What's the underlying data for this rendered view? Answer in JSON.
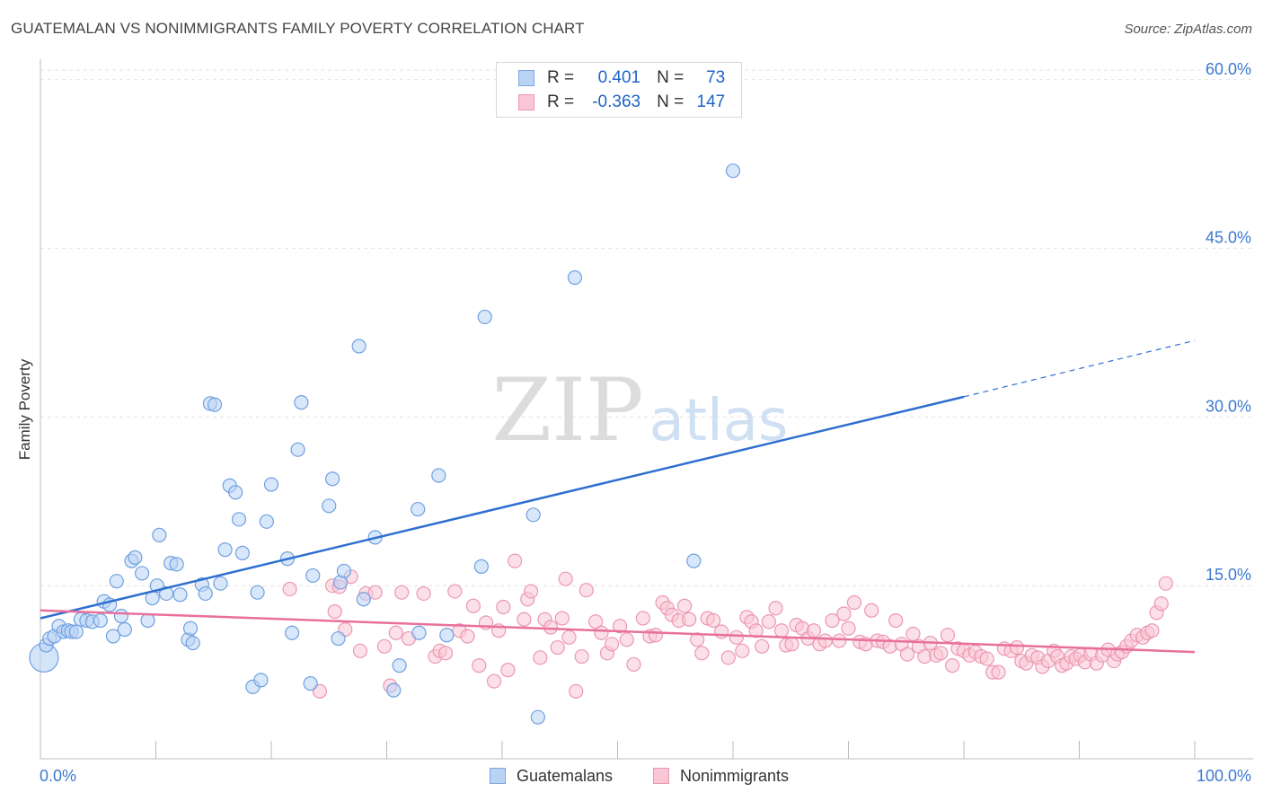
{
  "header": {
    "title": "GUATEMALAN VS NONIMMIGRANTS FAMILY POVERTY CORRELATION CHART",
    "source": "Source: ZipAtlas.com"
  },
  "watermark": {
    "zip": "ZIP",
    "atlas": "atlas"
  },
  "legend": {
    "series": [
      {
        "r_label": "R =",
        "r_value": "0.401",
        "n_label": "N =",
        "n_value": "73",
        "fill": "#b9d3f5",
        "stroke": "#7ba7e0"
      },
      {
        "r_label": "R =",
        "r_value": "-0.363",
        "n_label": "N =",
        "n_value": "147",
        "fill": "#f9c6d6",
        "stroke": "#eb97b2"
      }
    ]
  },
  "bottom_legend": {
    "guatemalans": "Guatemalans",
    "nonimmigrants": "Nonimmigrants"
  },
  "chart_data": {
    "type": "scatter",
    "title": "GUATEMALAN VS NONIMMIGRANTS FAMILY POVERTY CORRELATION CHART",
    "xlabel": "",
    "ylabel": "Family Poverty",
    "xlim": [
      0,
      100
    ],
    "ylim": [
      0,
      61.5
    ],
    "x_tick_labels": [
      {
        "value": 0,
        "label": "0.0%"
      },
      {
        "value": 100,
        "label": "100.0%"
      }
    ],
    "y_tick_labels": [
      {
        "value": 15,
        "label": "15.0%"
      },
      {
        "value": 30,
        "label": "30.0%"
      },
      {
        "value": 45,
        "label": "45.0%"
      },
      {
        "value": 60,
        "label": "60.0%"
      }
    ],
    "x_minor_ticks": [
      10,
      20,
      30,
      40,
      50,
      60,
      70,
      80,
      90,
      100
    ],
    "grid": true,
    "series": [
      {
        "name": "Guatemalans",
        "color": "#6fa0e0",
        "fill": "#b9d3f5",
        "trend_color": "#2f6fd0",
        "trend": {
          "x1": 0,
          "y1": 12.1,
          "x2": 80,
          "y2": 31.8,
          "dash_to_x": 100,
          "dash_to_y": 36.8
        },
        "points": [
          [
            0.5,
            9.7
          ],
          [
            0.8,
            10.3
          ],
          [
            1.2,
            10.5
          ],
          [
            1.6,
            11.4
          ],
          [
            2.0,
            10.9
          ],
          [
            2.4,
            11.0
          ],
          [
            2.7,
            10.9
          ],
          [
            3.1,
            10.9
          ],
          [
            3.5,
            12.0
          ],
          [
            4.0,
            11.9
          ],
          [
            4.5,
            11.8
          ],
          [
            5.2,
            11.9
          ],
          [
            5.5,
            13.6
          ],
          [
            6.0,
            13.3
          ],
          [
            6.3,
            10.5
          ],
          [
            6.6,
            15.4
          ],
          [
            7.0,
            12.3
          ],
          [
            7.3,
            11.1
          ],
          [
            7.9,
            17.2
          ],
          [
            8.2,
            17.5
          ],
          [
            8.8,
            16.1
          ],
          [
            9.3,
            11.9
          ],
          [
            9.7,
            13.9
          ],
          [
            10.1,
            15.0
          ],
          [
            10.3,
            19.5
          ],
          [
            10.9,
            14.3
          ],
          [
            11.3,
            17.0
          ],
          [
            11.8,
            16.9
          ],
          [
            12.1,
            14.2
          ],
          [
            12.8,
            10.2
          ],
          [
            13.0,
            11.2
          ],
          [
            13.2,
            9.9
          ],
          [
            14.0,
            15.1
          ],
          [
            14.3,
            14.3
          ],
          [
            14.7,
            31.2
          ],
          [
            15.1,
            31.1
          ],
          [
            15.6,
            15.2
          ],
          [
            16.0,
            18.2
          ],
          [
            16.4,
            23.9
          ],
          [
            16.9,
            23.3
          ],
          [
            17.2,
            20.9
          ],
          [
            17.5,
            17.9
          ],
          [
            18.4,
            6.0
          ],
          [
            18.8,
            14.4
          ],
          [
            19.1,
            6.6
          ],
          [
            19.6,
            20.7
          ],
          [
            20.0,
            24.0
          ],
          [
            21.4,
            17.4
          ],
          [
            21.8,
            10.8
          ],
          [
            22.3,
            27.1
          ],
          [
            22.6,
            31.3
          ],
          [
            23.4,
            6.3
          ],
          [
            23.6,
            15.9
          ],
          [
            25.0,
            22.1
          ],
          [
            25.3,
            24.5
          ],
          [
            25.8,
            10.3
          ],
          [
            26.0,
            15.3
          ],
          [
            26.3,
            16.3
          ],
          [
            27.6,
            36.3
          ],
          [
            28.0,
            13.8
          ],
          [
            29.0,
            19.3
          ],
          [
            30.6,
            5.7
          ],
          [
            31.1,
            7.9
          ],
          [
            32.8,
            10.8
          ],
          [
            32.7,
            21.8
          ],
          [
            34.5,
            24.8
          ],
          [
            35.2,
            10.6
          ],
          [
            38.2,
            16.7
          ],
          [
            38.5,
            38.9
          ],
          [
            42.7,
            21.3
          ],
          [
            43.1,
            3.3
          ],
          [
            46.3,
            42.4
          ],
          [
            56.6,
            17.2
          ],
          [
            60.0,
            51.9
          ]
        ],
        "point_radius": 7.5,
        "big_point": {
          "x": 0.3,
          "y": 8.6,
          "r": 16
        }
      },
      {
        "name": "Nonimmigrants",
        "color": "#eb97b2",
        "fill": "#f9c6d6",
        "trend_color": "#e8709a",
        "trend": {
          "x1": 0,
          "y1": 12.8,
          "x2": 100,
          "y2": 9.1
        },
        "points": [
          [
            21.6,
            14.7
          ],
          [
            24.2,
            5.6
          ],
          [
            25.3,
            15.0
          ],
          [
            25.5,
            12.7
          ],
          [
            25.9,
            14.9
          ],
          [
            26.4,
            11.1
          ],
          [
            26.9,
            15.8
          ],
          [
            27.7,
            9.2
          ],
          [
            28.2,
            14.3
          ],
          [
            29.0,
            14.4
          ],
          [
            29.8,
            9.6
          ],
          [
            30.3,
            6.1
          ],
          [
            30.8,
            10.8
          ],
          [
            31.3,
            14.4
          ],
          [
            31.9,
            10.3
          ],
          [
            33.2,
            14.3
          ],
          [
            34.2,
            8.7
          ],
          [
            34.6,
            9.2
          ],
          [
            35.1,
            9.0
          ],
          [
            35.9,
            14.5
          ],
          [
            36.3,
            11.0
          ],
          [
            37.0,
            10.5
          ],
          [
            37.5,
            13.2
          ],
          [
            38.0,
            7.9
          ],
          [
            38.6,
            11.7
          ],
          [
            39.3,
            6.5
          ],
          [
            39.7,
            11.0
          ],
          [
            40.1,
            13.1
          ],
          [
            40.5,
            7.5
          ],
          [
            41.1,
            17.2
          ],
          [
            41.9,
            12.0
          ],
          [
            42.2,
            13.8
          ],
          [
            42.5,
            14.5
          ],
          [
            43.3,
            8.6
          ],
          [
            43.7,
            12.0
          ],
          [
            44.2,
            11.3
          ],
          [
            44.8,
            9.5
          ],
          [
            45.2,
            12.1
          ],
          [
            45.5,
            15.6
          ],
          [
            45.8,
            10.4
          ],
          [
            46.4,
            5.6
          ],
          [
            46.9,
            8.7
          ],
          [
            47.3,
            14.6
          ],
          [
            48.1,
            11.8
          ],
          [
            48.6,
            10.8
          ],
          [
            49.1,
            9.0
          ],
          [
            49.5,
            9.8
          ],
          [
            50.2,
            11.4
          ],
          [
            50.8,
            10.2
          ],
          [
            51.4,
            8.0
          ],
          [
            52.2,
            12.1
          ],
          [
            52.8,
            10.5
          ],
          [
            53.3,
            10.6
          ],
          [
            53.9,
            13.5
          ],
          [
            54.3,
            13.0
          ],
          [
            54.7,
            12.4
          ],
          [
            55.3,
            11.9
          ],
          [
            55.8,
            13.2
          ],
          [
            56.2,
            12.0
          ],
          [
            56.9,
            10.2
          ],
          [
            57.3,
            9.0
          ],
          [
            57.8,
            12.1
          ],
          [
            58.3,
            11.9
          ],
          [
            59.0,
            10.9
          ],
          [
            59.6,
            8.6
          ],
          [
            60.3,
            10.4
          ],
          [
            60.8,
            9.2
          ],
          [
            61.2,
            12.2
          ],
          [
            61.6,
            11.8
          ],
          [
            62.0,
            11.0
          ],
          [
            62.5,
            9.6
          ],
          [
            63.1,
            11.8
          ],
          [
            63.7,
            13.0
          ],
          [
            64.2,
            11.0
          ],
          [
            64.6,
            9.7
          ],
          [
            65.1,
            9.8
          ],
          [
            65.5,
            11.5
          ],
          [
            66.0,
            11.2
          ],
          [
            66.5,
            10.3
          ],
          [
            67.0,
            11.0
          ],
          [
            67.5,
            9.8
          ],
          [
            68.0,
            10.1
          ],
          [
            68.6,
            11.9
          ],
          [
            69.2,
            10.1
          ],
          [
            69.6,
            12.5
          ],
          [
            70.0,
            11.2
          ],
          [
            70.5,
            13.5
          ],
          [
            71.0,
            10.0
          ],
          [
            71.5,
            9.8
          ],
          [
            72.0,
            12.8
          ],
          [
            72.5,
            10.1
          ],
          [
            73.0,
            10.0
          ],
          [
            73.6,
            9.6
          ],
          [
            74.1,
            11.9
          ],
          [
            74.6,
            9.8
          ],
          [
            75.1,
            8.9
          ],
          [
            75.6,
            10.7
          ],
          [
            76.1,
            9.6
          ],
          [
            76.6,
            8.7
          ],
          [
            77.1,
            9.9
          ],
          [
            77.6,
            8.8
          ],
          [
            78.0,
            9.0
          ],
          [
            78.6,
            10.6
          ],
          [
            79.0,
            7.9
          ],
          [
            79.5,
            9.4
          ],
          [
            80.0,
            9.2
          ],
          [
            80.5,
            8.8
          ],
          [
            81.0,
            9.1
          ],
          [
            81.5,
            8.7
          ],
          [
            82.0,
            8.5
          ],
          [
            82.5,
            7.3
          ],
          [
            83.0,
            7.3
          ],
          [
            83.5,
            9.4
          ],
          [
            84.1,
            9.2
          ],
          [
            84.6,
            9.5
          ],
          [
            85.0,
            8.3
          ],
          [
            85.4,
            8.1
          ],
          [
            85.9,
            8.8
          ],
          [
            86.4,
            8.6
          ],
          [
            86.8,
            7.8
          ],
          [
            87.3,
            8.3
          ],
          [
            87.8,
            9.2
          ],
          [
            88.1,
            8.7
          ],
          [
            88.5,
            7.9
          ],
          [
            88.9,
            8.1
          ],
          [
            89.3,
            8.7
          ],
          [
            89.7,
            8.5
          ],
          [
            90.1,
            8.8
          ],
          [
            90.5,
            8.2
          ],
          [
            91.0,
            8.9
          ],
          [
            91.5,
            8.1
          ],
          [
            92.0,
            8.8
          ],
          [
            92.5,
            9.3
          ],
          [
            93.0,
            8.3
          ],
          [
            93.3,
            8.9
          ],
          [
            93.7,
            9.1
          ],
          [
            94.1,
            9.6
          ],
          [
            94.5,
            10.1
          ],
          [
            95.0,
            10.6
          ],
          [
            95.5,
            10.4
          ],
          [
            95.9,
            10.8
          ],
          [
            96.3,
            11.0
          ],
          [
            96.7,
            12.6
          ],
          [
            97.1,
            13.4
          ],
          [
            97.5,
            15.2
          ]
        ],
        "point_radius": 7.5
      }
    ]
  }
}
